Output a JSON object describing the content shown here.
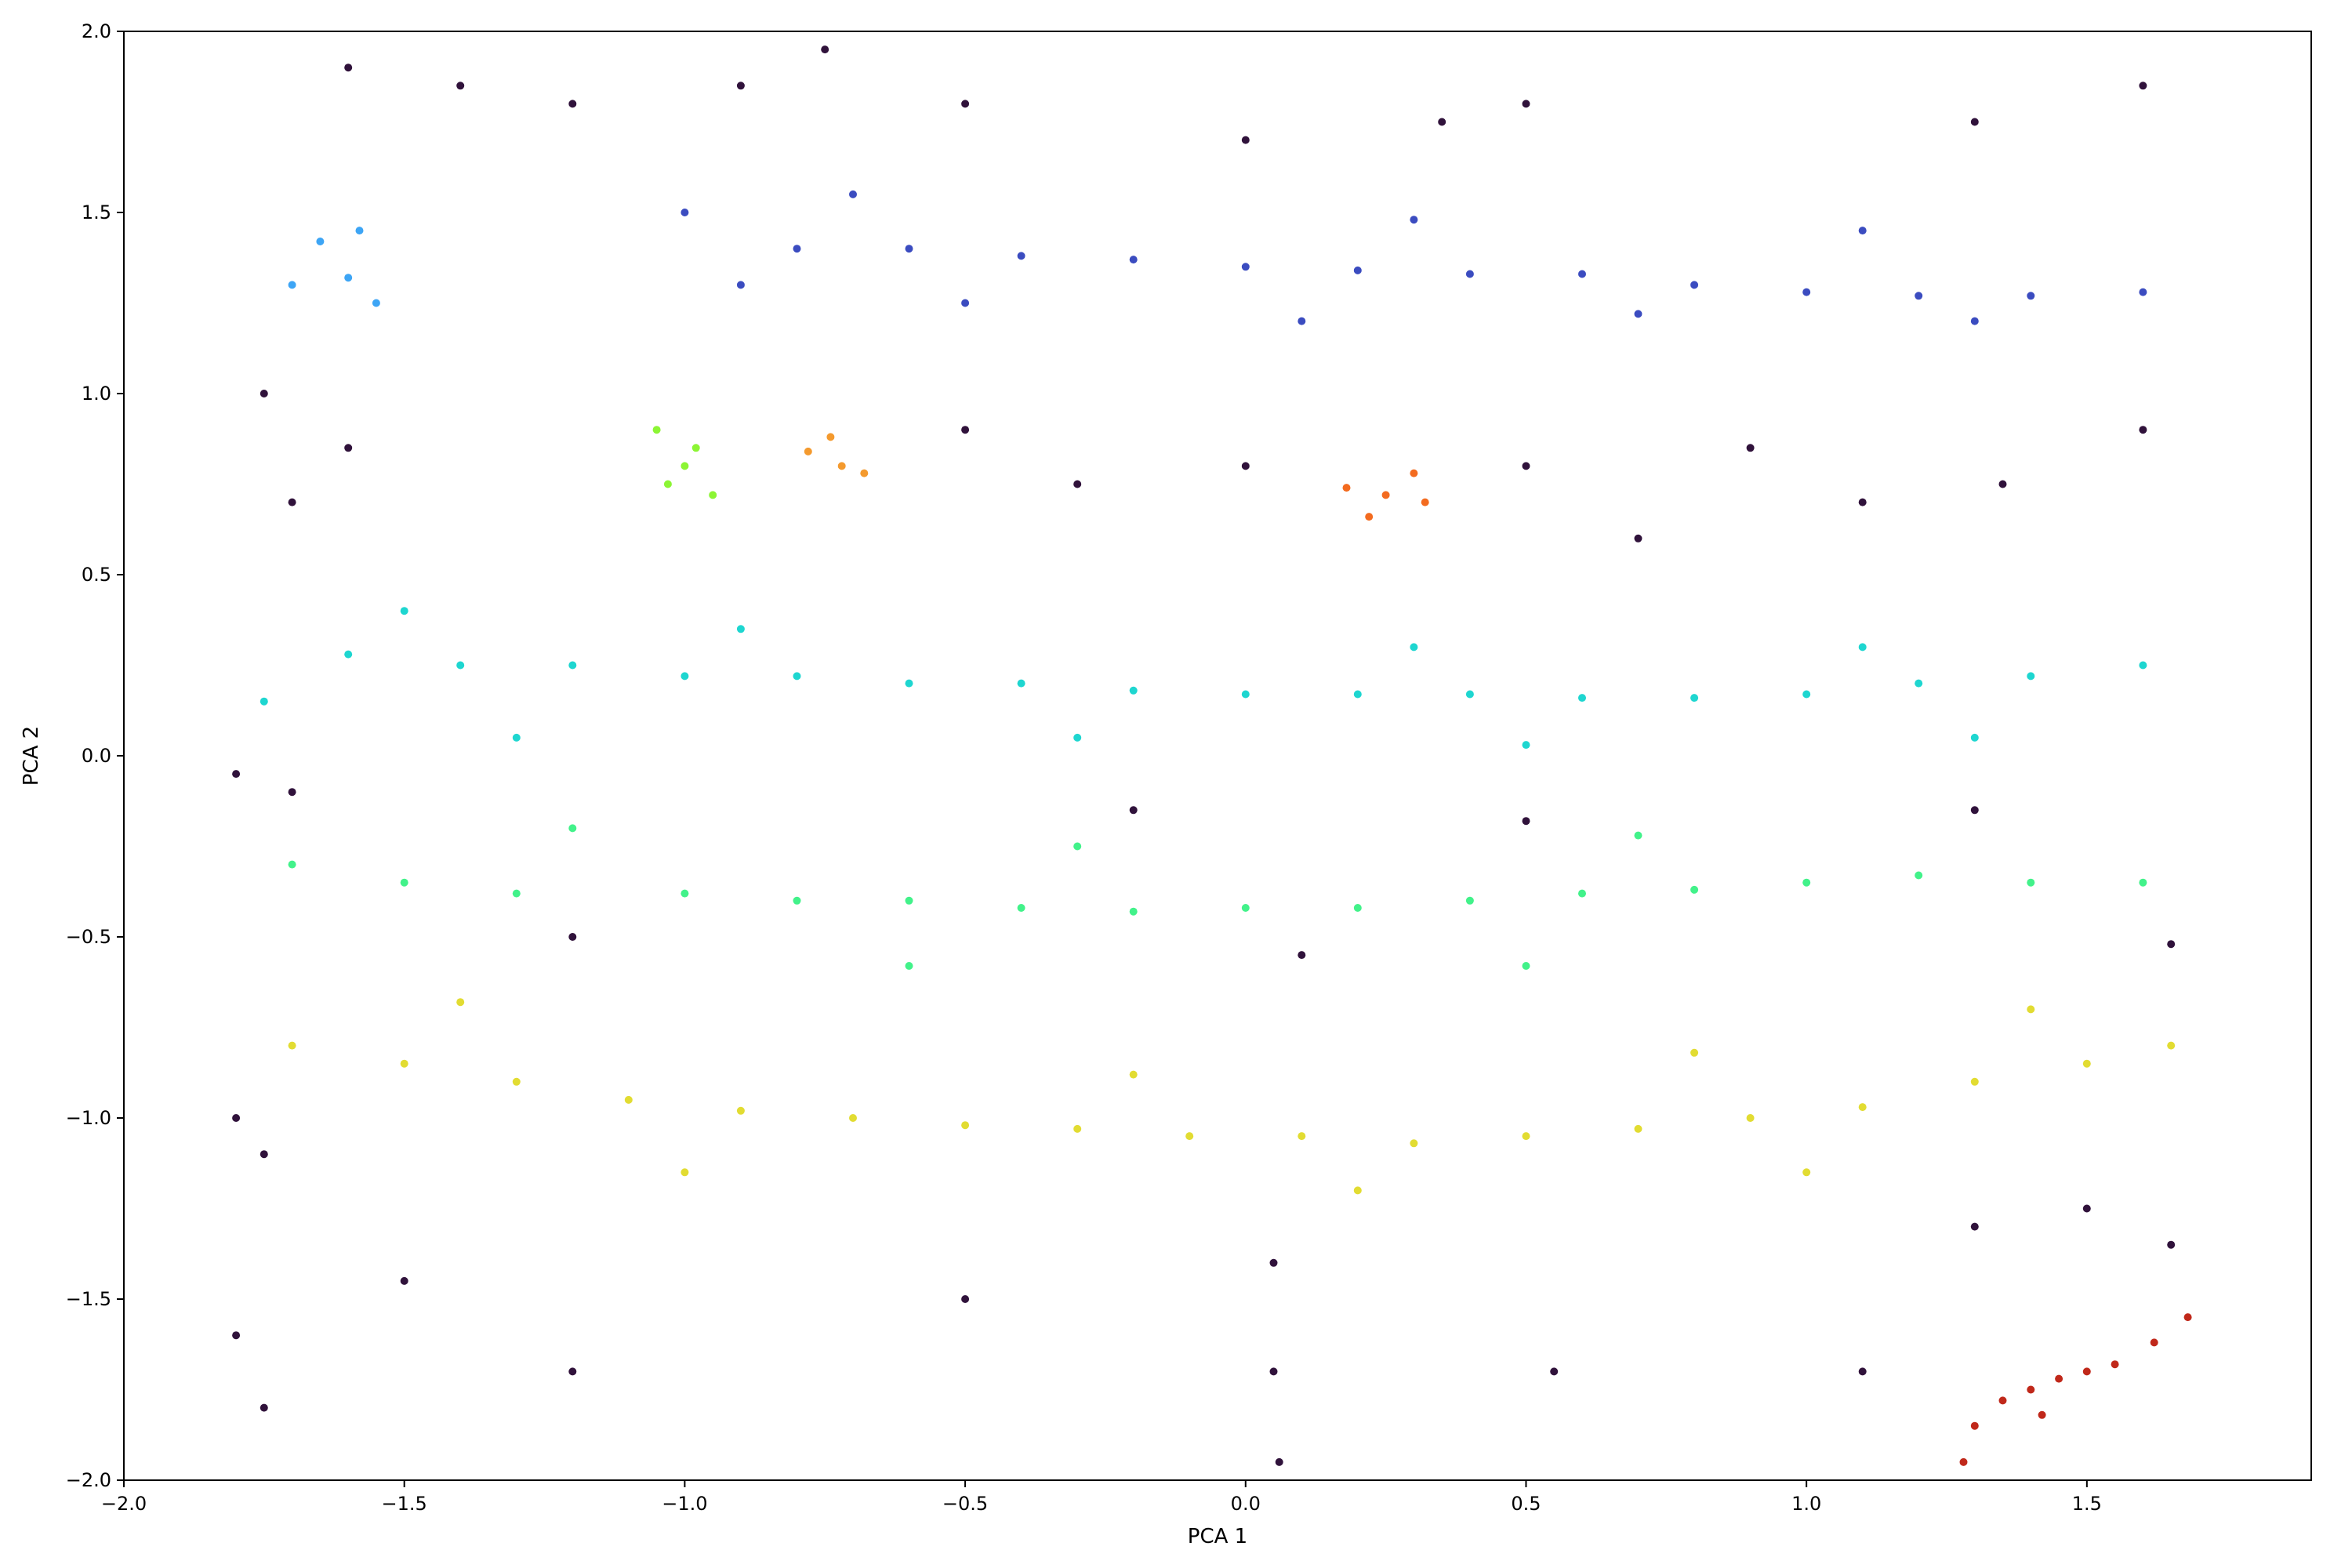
{
  "chart_data": {
    "type": "scatter",
    "title": "",
    "xlabel": "PCA 1",
    "ylabel": "PCA 2",
    "xlim": [
      -2.0,
      1.9
    ],
    "ylim": [
      -2.0,
      2.0
    ],
    "xticks": [
      -2.0,
      -1.5,
      -1.0,
      -0.5,
      0.0,
      0.5,
      1.0,
      1.5
    ],
    "xtick_labels": [
      "−2.0",
      "−1.5",
      "−1.0",
      "−0.5",
      "0.0",
      "0.5",
      "1.0",
      "1.5"
    ],
    "yticks": [
      -2.0,
      -1.5,
      -1.0,
      -0.5,
      0.0,
      0.5,
      1.0,
      1.5,
      2.0
    ],
    "ytick_labels": [
      "−2.0",
      "−1.5",
      "−1.0",
      "−0.5",
      "0.0",
      "0.5",
      "1.0",
      "1.5",
      "2.0"
    ],
    "grid": false,
    "legend": "none",
    "series": [
      {
        "color": "#3b4cc0",
        "points": [
          [
            -1.0,
            1.5
          ],
          [
            -0.8,
            1.4
          ],
          [
            -0.6,
            1.4
          ],
          [
            -0.4,
            1.38
          ],
          [
            -0.2,
            1.37
          ],
          [
            0.0,
            1.35
          ],
          [
            0.2,
            1.34
          ],
          [
            0.4,
            1.33
          ],
          [
            0.6,
            1.33
          ],
          [
            0.8,
            1.3
          ],
          [
            1.0,
            1.28
          ],
          [
            1.2,
            1.27
          ],
          [
            1.4,
            1.27
          ],
          [
            1.6,
            1.28
          ],
          [
            -0.9,
            1.3
          ],
          [
            -0.5,
            1.25
          ],
          [
            0.1,
            1.2
          ],
          [
            0.7,
            1.22
          ],
          [
            1.3,
            1.2
          ],
          [
            -0.7,
            1.55
          ],
          [
            0.3,
            1.48
          ],
          [
            1.1,
            1.45
          ]
        ]
      },
      {
        "color": "#3da5f5",
        "points": [
          [
            -1.65,
            1.42
          ],
          [
            -1.6,
            1.32
          ],
          [
            -1.55,
            1.25
          ],
          [
            -1.7,
            1.3
          ],
          [
            -1.58,
            1.45
          ]
        ]
      },
      {
        "color": "#8cf534",
        "points": [
          [
            -1.0,
            0.8
          ],
          [
            -0.98,
            0.85
          ],
          [
            -1.03,
            0.75
          ],
          [
            -0.95,
            0.72
          ],
          [
            -1.05,
            0.9
          ]
        ]
      },
      {
        "color": "#f49a2e",
        "points": [
          [
            -0.74,
            0.88
          ],
          [
            -0.72,
            0.8
          ],
          [
            -0.68,
            0.78
          ],
          [
            -0.78,
            0.84
          ]
        ]
      },
      {
        "color": "#f36b1f",
        "points": [
          [
            0.18,
            0.74
          ],
          [
            0.25,
            0.72
          ],
          [
            0.3,
            0.78
          ],
          [
            0.22,
            0.66
          ],
          [
            0.32,
            0.7
          ]
        ]
      },
      {
        "color": "#1ed6d0",
        "points": [
          [
            -1.75,
            0.15
          ],
          [
            -1.6,
            0.28
          ],
          [
            -1.4,
            0.25
          ],
          [
            -1.2,
            0.25
          ],
          [
            -1.0,
            0.22
          ],
          [
            -0.8,
            0.22
          ],
          [
            -0.6,
            0.2
          ],
          [
            -0.4,
            0.2
          ],
          [
            -0.2,
            0.18
          ],
          [
            0.0,
            0.17
          ],
          [
            0.2,
            0.17
          ],
          [
            0.4,
            0.17
          ],
          [
            0.6,
            0.16
          ],
          [
            0.8,
            0.16
          ],
          [
            1.0,
            0.17
          ],
          [
            1.2,
            0.2
          ],
          [
            1.4,
            0.22
          ],
          [
            1.6,
            0.25
          ],
          [
            -1.5,
            0.4
          ],
          [
            -0.9,
            0.35
          ],
          [
            0.3,
            0.3
          ],
          [
            1.1,
            0.3
          ],
          [
            -1.3,
            0.05
          ],
          [
            -0.3,
            0.05
          ],
          [
            0.5,
            0.03
          ],
          [
            1.3,
            0.05
          ]
        ]
      },
      {
        "color": "#42f28a",
        "points": [
          [
            -1.7,
            -0.3
          ],
          [
            -1.5,
            -0.35
          ],
          [
            -1.3,
            -0.38
          ],
          [
            -1.0,
            -0.38
          ],
          [
            -0.8,
            -0.4
          ],
          [
            -0.6,
            -0.4
          ],
          [
            -0.4,
            -0.42
          ],
          [
            -0.2,
            -0.43
          ],
          [
            0.0,
            -0.42
          ],
          [
            0.2,
            -0.42
          ],
          [
            0.4,
            -0.4
          ],
          [
            0.6,
            -0.38
          ],
          [
            0.8,
            -0.37
          ],
          [
            1.0,
            -0.35
          ],
          [
            1.2,
            -0.33
          ],
          [
            1.4,
            -0.35
          ],
          [
            1.6,
            -0.35
          ],
          [
            -1.2,
            -0.2
          ],
          [
            -0.3,
            -0.25
          ],
          [
            0.7,
            -0.22
          ],
          [
            -0.6,
            -0.58
          ],
          [
            0.5,
            -0.58
          ]
        ]
      },
      {
        "color": "#e2dc32",
        "points": [
          [
            -1.7,
            -0.8
          ],
          [
            -1.5,
            -0.85
          ],
          [
            -1.3,
            -0.9
          ],
          [
            -1.1,
            -0.95
          ],
          [
            -0.9,
            -0.98
          ],
          [
            -0.7,
            -1.0
          ],
          [
            -0.5,
            -1.02
          ],
          [
            -0.3,
            -1.03
          ],
          [
            -0.1,
            -1.05
          ],
          [
            0.1,
            -1.05
          ],
          [
            0.3,
            -1.07
          ],
          [
            0.5,
            -1.05
          ],
          [
            0.7,
            -1.03
          ],
          [
            0.9,
            -1.0
          ],
          [
            1.1,
            -0.97
          ],
          [
            1.3,
            -0.9
          ],
          [
            1.5,
            -0.85
          ],
          [
            1.65,
            -0.8
          ],
          [
            -1.4,
            -0.68
          ],
          [
            -0.2,
            -0.88
          ],
          [
            0.8,
            -0.82
          ],
          [
            1.4,
            -0.7
          ],
          [
            -1.0,
            -1.15
          ],
          [
            0.2,
            -1.2
          ],
          [
            1.0,
            -1.15
          ]
        ]
      },
      {
        "color": "#c0281a",
        "points": [
          [
            1.3,
            -1.85
          ],
          [
            1.35,
            -1.78
          ],
          [
            1.4,
            -1.75
          ],
          [
            1.45,
            -1.72
          ],
          [
            1.5,
            -1.7
          ],
          [
            1.55,
            -1.68
          ],
          [
            1.62,
            -1.62
          ],
          [
            1.68,
            -1.55
          ],
          [
            1.28,
            -1.95
          ],
          [
            1.42,
            -1.82
          ]
        ]
      },
      {
        "color": "#30123b",
        "points": [
          [
            -1.6,
            1.9
          ],
          [
            -1.4,
            1.85
          ],
          [
            -1.2,
            1.8
          ],
          [
            -0.9,
            1.85
          ],
          [
            -0.75,
            1.95
          ],
          [
            -0.5,
            1.8
          ],
          [
            0.0,
            1.7
          ],
          [
            0.35,
            1.75
          ],
          [
            0.5,
            1.8
          ],
          [
            1.3,
            1.75
          ],
          [
            1.6,
            1.85
          ],
          [
            -1.75,
            1.0
          ],
          [
            -1.7,
            0.7
          ],
          [
            -1.6,
            0.85
          ],
          [
            -0.5,
            0.9
          ],
          [
            -0.3,
            0.75
          ],
          [
            0.0,
            0.8
          ],
          [
            0.5,
            0.8
          ],
          [
            0.7,
            0.6
          ],
          [
            0.9,
            0.85
          ],
          [
            1.1,
            0.7
          ],
          [
            1.35,
            0.75
          ],
          [
            1.6,
            0.9
          ],
          [
            -1.8,
            -0.05
          ],
          [
            -1.7,
            -0.1
          ],
          [
            -0.2,
            -0.15
          ],
          [
            0.5,
            -0.18
          ],
          [
            1.3,
            -0.15
          ],
          [
            -1.8,
            -1.0
          ],
          [
            -1.75,
            -1.1
          ],
          [
            -1.8,
            -1.6
          ],
          [
            -1.75,
            -1.8
          ],
          [
            -1.5,
            -1.45
          ],
          [
            -1.2,
            -1.7
          ],
          [
            -0.5,
            -1.5
          ],
          [
            0.05,
            -1.4
          ],
          [
            0.05,
            -1.7
          ],
          [
            0.06,
            -1.95
          ],
          [
            0.55,
            -1.7
          ],
          [
            1.1,
            -1.7
          ],
          [
            1.3,
            -1.3
          ],
          [
            1.5,
            -1.25
          ],
          [
            1.65,
            -1.35
          ],
          [
            -1.2,
            -0.5
          ],
          [
            0.1,
            -0.55
          ],
          [
            1.65,
            -0.52
          ]
        ]
      }
    ]
  }
}
